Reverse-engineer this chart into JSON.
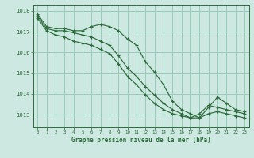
{
  "title": "Graphe pression niveau de la mer (hPa)",
  "background_color": "#cce8e0",
  "grid_color": "#99ccbb",
  "line_color": "#2d6b3c",
  "xlim": [
    -0.5,
    23.5
  ],
  "ylim": [
    1012.4,
    1018.3
  ],
  "yticks": [
    1013,
    1014,
    1015,
    1016,
    1017,
    1018
  ],
  "xticks": [
    0,
    1,
    2,
    3,
    4,
    5,
    6,
    7,
    8,
    9,
    10,
    11,
    12,
    13,
    14,
    15,
    16,
    17,
    18,
    19,
    20,
    21,
    22,
    23
  ],
  "series": [
    [
      1017.85,
      1017.25,
      1017.15,
      1017.15,
      1017.05,
      1017.05,
      1017.25,
      1017.35,
      1017.25,
      1017.05,
      1016.65,
      1016.35,
      1015.55,
      1015.05,
      1014.45,
      1013.65,
      1013.25,
      1013.05,
      1012.85,
      1013.35,
      1013.85,
      1013.55,
      1013.25,
      1013.15
    ],
    [
      1017.75,
      1017.15,
      1017.05,
      1017.05,
      1016.95,
      1016.85,
      1016.75,
      1016.55,
      1016.35,
      1015.85,
      1015.25,
      1014.85,
      1014.35,
      1013.95,
      1013.55,
      1013.25,
      1013.05,
      1012.85,
      1013.05,
      1013.45,
      1013.35,
      1013.25,
      1013.15,
      1013.05
    ],
    [
      1017.65,
      1017.05,
      1016.85,
      1016.75,
      1016.55,
      1016.45,
      1016.35,
      1016.15,
      1015.95,
      1015.45,
      1014.85,
      1014.45,
      1013.95,
      1013.55,
      1013.25,
      1013.05,
      1012.95,
      1012.85,
      1012.85,
      1013.05,
      1013.15,
      1013.05,
      1012.95,
      1012.85
    ]
  ]
}
